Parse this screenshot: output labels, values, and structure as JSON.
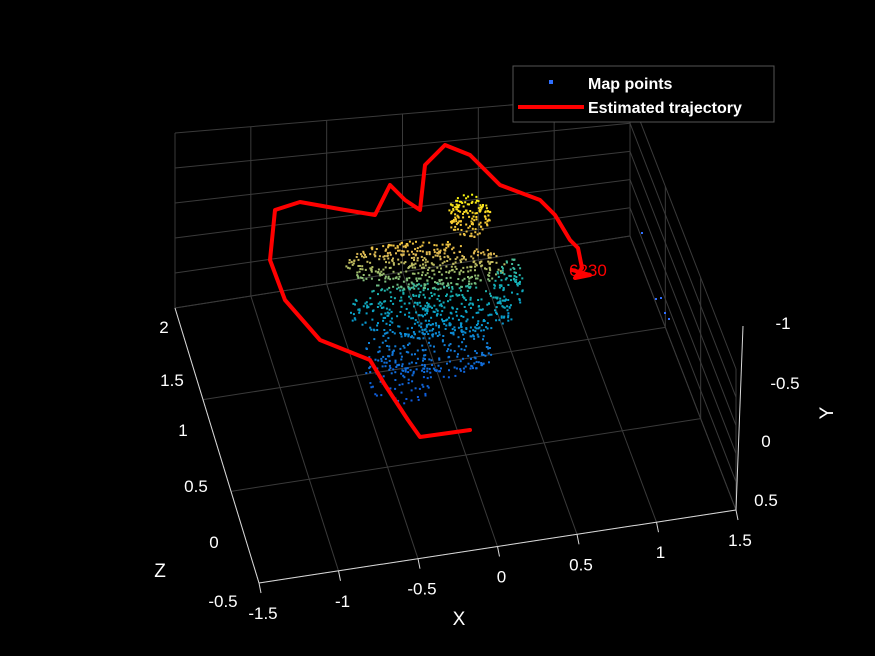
{
  "chart_data": {
    "type": "scatter",
    "view": "3d",
    "background": "#000000",
    "grid": true,
    "legend_placement": "top-right",
    "axes": {
      "x": {
        "label": "X",
        "ticks": [
          "-1.5",
          "-1",
          "-0.5",
          "0",
          "0.5",
          "1",
          "1.5"
        ],
        "range": [
          -1.5,
          1.5
        ]
      },
      "y": {
        "label": "Y",
        "ticks": [
          "-1",
          "-0.5",
          "0",
          "0.5"
        ],
        "range": [
          -1,
          0.5
        ],
        "reversed": true
      },
      "z": {
        "label": "Z",
        "ticks": [
          "-0.5",
          "0",
          "0.5",
          "1",
          "1.5",
          "2"
        ],
        "range": [
          -0.5,
          2
        ]
      }
    },
    "series": [
      {
        "name": "Map points",
        "kind": "point-cloud",
        "color": "#2f6fff",
        "colormap": "parula",
        "approx_extent": {
          "x": [
            -1.0,
            0.6
          ],
          "y": [
            -0.6,
            0.4
          ],
          "z": [
            0.3,
            2.0
          ]
        }
      },
      {
        "name": "Estimated trajectory",
        "kind": "line",
        "color": "#ff0000",
        "path_xy": [
          [
            -0.25,
            0.36
          ],
          [
            -0.55,
            0.33
          ],
          [
            -0.7,
            0.18
          ],
          [
            -0.8,
            0.02
          ],
          [
            -1.05,
            -0.1
          ],
          [
            -1.25,
            -0.35
          ],
          [
            -1.3,
            -0.6
          ],
          [
            -1.2,
            -0.85
          ],
          [
            -0.95,
            -0.87
          ],
          [
            -0.8,
            -0.82
          ],
          [
            -0.7,
            -0.95
          ],
          [
            -0.58,
            -0.78
          ],
          [
            -0.5,
            -0.74
          ],
          [
            -0.52,
            -1.0
          ],
          [
            -0.35,
            -1.05
          ],
          [
            -0.1,
            -0.85
          ],
          [
            0.15,
            -0.7
          ],
          [
            0.32,
            -0.55
          ],
          [
            0.35,
            -0.5
          ]
        ]
      }
    ],
    "annotations": [
      {
        "text": "6230",
        "color": "#ff0000"
      }
    ]
  }
}
